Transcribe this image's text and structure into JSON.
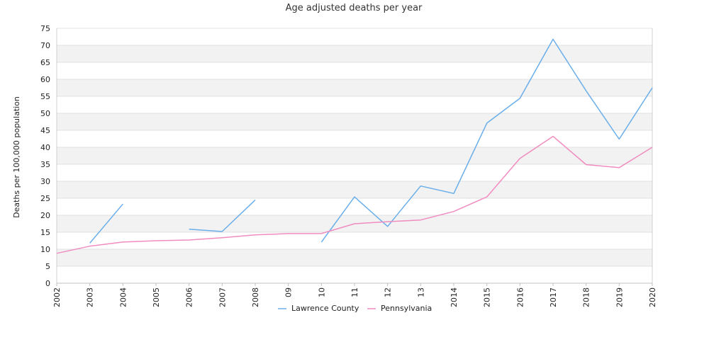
{
  "chart_data": {
    "type": "line",
    "title": "Age adjusted deaths per year",
    "ylabel": "Deaths per 100,000 population",
    "xlabel": "",
    "ylim": [
      0,
      75
    ],
    "yticks": [
      0,
      5,
      10,
      15,
      20,
      25,
      30,
      35,
      40,
      45,
      50,
      55,
      60,
      65,
      70,
      75
    ],
    "x_tick_labels": [
      "2002",
      "2003",
      "2004",
      "2005",
      "2006",
      "2007",
      "2008",
      "09",
      "10",
      "11",
      "12",
      "13",
      "2014",
      "2015",
      "2016",
      "2017",
      "2018",
      "2019",
      "2020"
    ],
    "grid": "alternating horizontal bands",
    "legend_position": "bottom-center",
    "series": [
      {
        "name": "Lawrence County",
        "color": "#6aaeea",
        "values": [
          null,
          11.8,
          23.3,
          null,
          15.9,
          15.2,
          24.5,
          null,
          12.1,
          25.4,
          16.7,
          28.6,
          26.4,
          47.1,
          54.4,
          71.8,
          56.6,
          42.4,
          57.5
        ]
      },
      {
        "name": "Pennsylvania",
        "color": "#f08cc0",
        "values": [
          8.8,
          10.9,
          12.1,
          12.5,
          12.7,
          13.4,
          14.2,
          14.6,
          14.6,
          17.5,
          18.1,
          18.6,
          21.1,
          25.4,
          36.7,
          43.2,
          34.9,
          34.0,
          40.0
        ]
      }
    ]
  }
}
